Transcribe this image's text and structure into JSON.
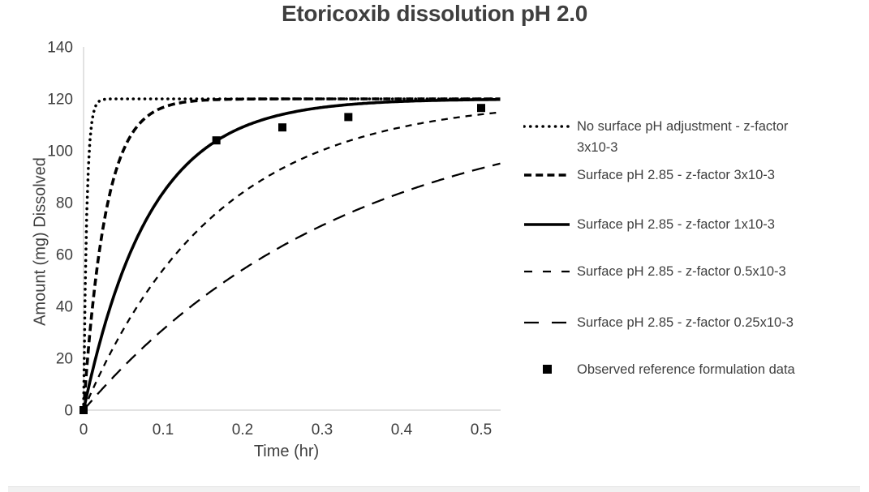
{
  "chart_data": {
    "type": "line",
    "title": "Etoricoxib dissolution pH 2.0",
    "xlabel": "Time (hr)",
    "ylabel": "Amount (mg) Dissolved",
    "xlim": [
      0,
      0.524
    ],
    "ylim": [
      0,
      140
    ],
    "x_tick_values": [
      0,
      0.1,
      0.2,
      0.3,
      0.4,
      0.5
    ],
    "x_tick_labels": [
      "0",
      "0.1",
      "0.2",
      "0.3",
      "0.4",
      "0.5"
    ],
    "y_tick_values": [
      0,
      20,
      40,
      60,
      80,
      100,
      120,
      140
    ],
    "y_tick_labels": [
      "0",
      "20",
      "40",
      "60",
      "80",
      "100",
      "120",
      "140"
    ],
    "grid": false,
    "legend_position": "right-outside",
    "plateau_mg": 120,
    "model": "amount = 120 * (1 - exp(-k * t))",
    "series": [
      {
        "name": "No surface pH adjustment - z-factor 3x10-3",
        "style": "dotted",
        "k": 250,
        "width": 3.6,
        "x": [
          0,
          0.1,
          0.2,
          0.3,
          0.4,
          0.5
        ],
        "y": [
          0,
          120,
          120,
          120,
          120,
          120
        ]
      },
      {
        "name": "Surface pH 2.85 - z-factor 3x10-3",
        "style": "dash-heavy",
        "k": 36,
        "width": 3.6,
        "x": [
          0,
          0.1,
          0.2,
          0.3,
          0.4,
          0.5
        ],
        "y": [
          0,
          116.7,
          119.9,
          120,
          120,
          120
        ]
      },
      {
        "name": "Surface pH 2.85 - z-factor 1x10-3",
        "style": "solid",
        "k": 12,
        "width": 3.6,
        "x": [
          0,
          0.1,
          0.2,
          0.3,
          0.4,
          0.5
        ],
        "y": [
          0,
          83.9,
          109.1,
          116.7,
          119.0,
          119.7
        ]
      },
      {
        "name": "Surface pH 2.85 - z-factor 0.5x10-3",
        "style": "dash",
        "k": 6,
        "width": 2.3,
        "x": [
          0,
          0.1,
          0.2,
          0.3,
          0.4,
          0.5
        ],
        "y": [
          0,
          54.2,
          83.9,
          100.2,
          109.1,
          114.0
        ]
      },
      {
        "name": "Surface pH 2.85 - z-factor 0.25x10-3",
        "style": "dash-long",
        "k": 3,
        "width": 2.3,
        "x": [
          0,
          0.1,
          0.2,
          0.3,
          0.4,
          0.5
        ],
        "y": [
          0,
          31.1,
          54.2,
          71.3,
          84.0,
          93.3
        ]
      }
    ],
    "scatter": {
      "name": "Observed reference formulation data",
      "marker": "filled-square",
      "size": 10,
      "points": [
        [
          0,
          0
        ],
        [
          0.167,
          104
        ],
        [
          0.25,
          109
        ],
        [
          0.333,
          113
        ],
        [
          0.5,
          116.5
        ]
      ]
    },
    "colors": {
      "series": "#000000",
      "text": "#3f3f3f",
      "axis_line": "#d9d9d9",
      "background": "#ffffff"
    }
  }
}
